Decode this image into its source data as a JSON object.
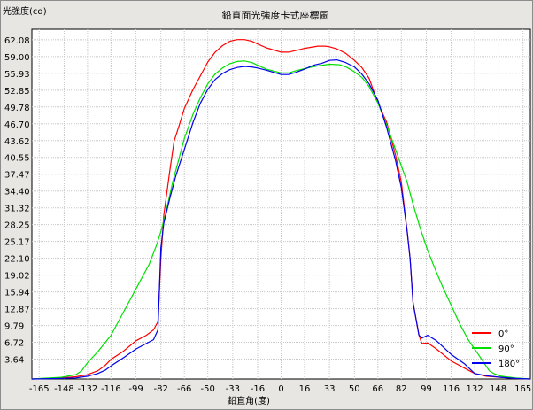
{
  "chart_data": {
    "type": "line",
    "title": "鉛直面光強度卡式座標圖",
    "ylabel": "光強度(cd)",
    "xlabel": "鉛直角(度)",
    "xlim": [
      -170,
      170
    ],
    "ylim": [
      0,
      64
    ],
    "x_ticks": [
      -165,
      -148,
      -132,
      -116,
      -99,
      -82,
      -66,
      -50,
      -33,
      -16,
      0,
      16,
      33,
      50,
      66,
      82,
      99,
      116,
      132,
      148,
      165
    ],
    "y_ticks": [
      "3.64",
      "6.72",
      "9.79",
      "12.87",
      "15.94",
      "19.02",
      "22.10",
      "25.17",
      "28.25",
      "31.32",
      "34.40",
      "37.47",
      "40.55",
      "43.62",
      "46.70",
      "49.78",
      "52.85",
      "55.93",
      "59.00",
      "62.08"
    ],
    "grid": true,
    "legend_position": "bottom-right",
    "series": [
      {
        "name": "0°",
        "color": "#ff0000",
        "points": [
          [
            -170,
            0
          ],
          [
            -150,
            0.2
          ],
          [
            -140,
            0.4
          ],
          [
            -132,
            0.8
          ],
          [
            -125,
            1.5
          ],
          [
            -120,
            2.5
          ],
          [
            -116,
            3.6
          ],
          [
            -108,
            5.0
          ],
          [
            -99,
            7.0
          ],
          [
            -92,
            8.0
          ],
          [
            -87,
            9.0
          ],
          [
            -84,
            10.5
          ],
          [
            -82,
            22
          ],
          [
            -80,
            30
          ],
          [
            -76,
            38
          ],
          [
            -73,
            43.5
          ],
          [
            -70,
            46
          ],
          [
            -66,
            49.5
          ],
          [
            -60,
            53
          ],
          [
            -55,
            55.5
          ],
          [
            -50,
            58
          ],
          [
            -45,
            59.8
          ],
          [
            -40,
            61
          ],
          [
            -35,
            61.8
          ],
          [
            -30,
            62.1
          ],
          [
            -25,
            62.1
          ],
          [
            -20,
            61.8
          ],
          [
            -16,
            61.3
          ],
          [
            -10,
            60.6
          ],
          [
            0,
            59.8
          ],
          [
            5,
            59.8
          ],
          [
            10,
            60.1
          ],
          [
            16,
            60.5
          ],
          [
            25,
            60.9
          ],
          [
            30,
            60.9
          ],
          [
            33,
            60.8
          ],
          [
            38,
            60.4
          ],
          [
            44,
            59.6
          ],
          [
            50,
            58.3
          ],
          [
            55,
            57
          ],
          [
            60,
            55
          ],
          [
            66,
            50.5
          ],
          [
            72,
            47
          ],
          [
            78,
            41
          ],
          [
            82,
            36
          ],
          [
            86,
            27
          ],
          [
            88,
            22
          ],
          [
            90,
            14
          ],
          [
            94,
            8.0
          ],
          [
            96,
            6.5
          ],
          [
            100,
            6.6
          ],
          [
            106,
            5.5
          ],
          [
            116,
            3.3
          ],
          [
            125,
            2.0
          ],
          [
            132,
            1.0
          ],
          [
            140,
            0.5
          ],
          [
            150,
            0.3
          ],
          [
            160,
            0.1
          ],
          [
            170,
            0
          ]
        ]
      },
      {
        "name": "90°",
        "color": "#00e000",
        "points": [
          [
            -170,
            0
          ],
          [
            -150,
            0.3
          ],
          [
            -140,
            0.8
          ],
          [
            -136,
            1.5
          ],
          [
            -132,
            3.0
          ],
          [
            -125,
            5.0
          ],
          [
            -116,
            8.0
          ],
          [
            -108,
            12
          ],
          [
            -99,
            16.5
          ],
          [
            -90,
            21
          ],
          [
            -85,
            24.5
          ],
          [
            -82,
            27
          ],
          [
            -79,
            30
          ],
          [
            -74,
            36
          ],
          [
            -70,
            40
          ],
          [
            -66,
            44
          ],
          [
            -60,
            48.5
          ],
          [
            -55,
            51.5
          ],
          [
            -50,
            54
          ],
          [
            -45,
            55.8
          ],
          [
            -40,
            56.9
          ],
          [
            -35,
            57.7
          ],
          [
            -30,
            58.1
          ],
          [
            -25,
            58.2
          ],
          [
            -20,
            57.9
          ],
          [
            -16,
            57.4
          ],
          [
            -10,
            56.7
          ],
          [
            0,
            56.0
          ],
          [
            5,
            56.0
          ],
          [
            10,
            56.4
          ],
          [
            16,
            56.8
          ],
          [
            25,
            57.3
          ],
          [
            33,
            57.6
          ],
          [
            40,
            57.5
          ],
          [
            45,
            57.0
          ],
          [
            50,
            56.2
          ],
          [
            55,
            55.2
          ],
          [
            60,
            53.5
          ],
          [
            66,
            50.5
          ],
          [
            72,
            46.5
          ],
          [
            78,
            42
          ],
          [
            82,
            39
          ],
          [
            86,
            36
          ],
          [
            90,
            32
          ],
          [
            95,
            27.5
          ],
          [
            100,
            23.5
          ],
          [
            106,
            19.5
          ],
          [
            110,
            17
          ],
          [
            116,
            13.5
          ],
          [
            122,
            10
          ],
          [
            128,
            7.0
          ],
          [
            132,
            5.5
          ],
          [
            137,
            3.5
          ],
          [
            142,
            1.5
          ],
          [
            145,
            1.0
          ],
          [
            150,
            0.5
          ],
          [
            160,
            0.2
          ],
          [
            170,
            0
          ]
        ]
      },
      {
        "name": "180°",
        "color": "#0000ee",
        "points": [
          [
            -170,
            0
          ],
          [
            -150,
            0.1
          ],
          [
            -140,
            0.2
          ],
          [
            -132,
            0.5
          ],
          [
            -125,
            1.0
          ],
          [
            -120,
            1.6
          ],
          [
            -116,
            2.4
          ],
          [
            -108,
            3.8
          ],
          [
            -99,
            5.5
          ],
          [
            -92,
            6.5
          ],
          [
            -87,
            7.2
          ],
          [
            -84,
            9.0
          ],
          [
            -82,
            24
          ],
          [
            -80,
            28.5
          ],
          [
            -76,
            33
          ],
          [
            -72,
            37
          ],
          [
            -66,
            42
          ],
          [
            -60,
            47
          ],
          [
            -55,
            50.5
          ],
          [
            -50,
            53
          ],
          [
            -45,
            54.8
          ],
          [
            -40,
            55.9
          ],
          [
            -35,
            56.6
          ],
          [
            -30,
            57.0
          ],
          [
            -25,
            57.2
          ],
          [
            -20,
            57.1
          ],
          [
            -16,
            56.9
          ],
          [
            -10,
            56.5
          ],
          [
            0,
            55.7
          ],
          [
            5,
            55.7
          ],
          [
            10,
            56.1
          ],
          [
            16,
            56.7
          ],
          [
            22,
            57.4
          ],
          [
            28,
            57.8
          ],
          [
            33,
            58.3
          ],
          [
            38,
            58.4
          ],
          [
            44,
            57.9
          ],
          [
            50,
            57.1
          ],
          [
            55,
            55.8
          ],
          [
            60,
            54
          ],
          [
            66,
            51
          ],
          [
            72,
            46
          ],
          [
            78,
            40
          ],
          [
            82,
            35
          ],
          [
            86,
            27
          ],
          [
            88,
            22
          ],
          [
            90,
            14
          ],
          [
            94,
            8.0
          ],
          [
            96,
            7.5
          ],
          [
            100,
            8.0
          ],
          [
            106,
            7.0
          ],
          [
            116,
            4.5
          ],
          [
            125,
            2.8
          ],
          [
            132,
            1.0
          ],
          [
            140,
            0.6
          ],
          [
            150,
            0.3
          ],
          [
            160,
            0.1
          ],
          [
            170,
            0
          ]
        ]
      }
    ]
  }
}
